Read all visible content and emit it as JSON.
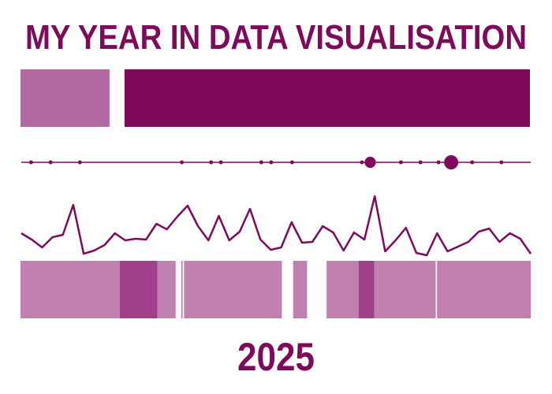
{
  "title": "MY YEAR IN DATA VISUALISATION",
  "year": "2025",
  "chart_data": [
    {
      "type": "proportion",
      "values": [
        18,
        82
      ],
      "colors": [
        "#b06aa0",
        "#7f0a5c"
      ]
    },
    {
      "type": "dot-timeline",
      "x": [
        7,
        21,
        42,
        115,
        136,
        143,
        172,
        179,
        194,
        244,
        250,
        272,
        286,
        299,
        308,
        323,
        344
      ],
      "sizes": [
        1,
        1,
        1,
        1,
        1,
        1,
        1,
        1,
        1,
        1,
        8,
        1,
        1,
        1,
        13,
        1,
        1
      ],
      "xlim": [
        0,
        365
      ],
      "color": "#7f0a5c"
    },
    {
      "type": "line",
      "x": [
        1,
        2,
        3,
        4,
        5,
        6,
        7,
        8,
        9,
        10,
        11,
        12,
        13,
        14,
        15,
        16,
        17,
        18,
        19,
        20,
        21,
        22,
        23,
        24,
        25,
        26,
        27,
        28,
        29,
        30,
        31,
        32,
        33,
        34,
        35,
        36,
        37,
        38,
        39,
        40,
        41,
        42,
        43,
        44,
        45,
        46,
        47,
        48,
        49,
        50
      ],
      "values": [
        34,
        26,
        16,
        29,
        32,
        70,
        8,
        12,
        19,
        34,
        25,
        27,
        26,
        46,
        39,
        55,
        69,
        43,
        25,
        56,
        25,
        36,
        65,
        26,
        13,
        16,
        48,
        22,
        23,
        43,
        35,
        12,
        35,
        26,
        81,
        11,
        25,
        41,
        9,
        6,
        34,
        11,
        17,
        23,
        36,
        40,
        23,
        34,
        27,
        8
      ],
      "xlim": [
        1,
        50
      ],
      "ylim": [
        0,
        85
      ],
      "color": "#7f0a5c"
    },
    {
      "type": "band",
      "starts": [
        0,
        71,
        98,
        115,
        117,
        195,
        219,
        242,
        253,
        298
      ],
      "ends": [
        71,
        98,
        111,
        116,
        187,
        205,
        242,
        253,
        297,
        365
      ],
      "colors": [
        "#c080b0",
        "#a04088",
        "#c080b0",
        "#c080b0",
        "#c080b0",
        "#c080b0",
        "#c080b0",
        "#a04088",
        "#c080b0",
        "#c080b0"
      ],
      "xlim": [
        0,
        365
      ]
    }
  ]
}
